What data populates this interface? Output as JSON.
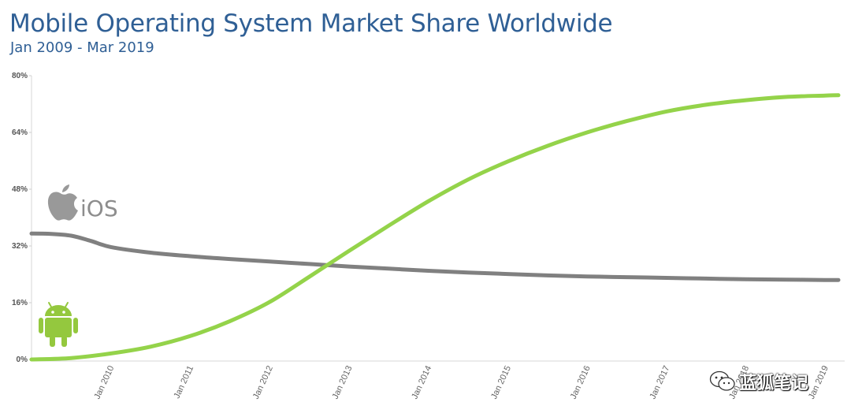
{
  "chart_data": {
    "type": "line",
    "title": "Mobile Operating System Market Share Worldwide",
    "subtitle": "Jan 2009 - Mar 2019",
    "xlabel": "",
    "ylabel": "",
    "ylim": [
      0,
      80
    ],
    "y_ticks": [
      "0%",
      "16%",
      "32%",
      "48%",
      "64%",
      "80%"
    ],
    "y_tick_values": [
      0,
      16,
      32,
      48,
      64,
      80
    ],
    "x_ticks": [
      "Jan 2010",
      "Jan 2011",
      "Jan 2012",
      "Jan 2013",
      "Jan 2014",
      "Jan 2015",
      "Jan 2016",
      "Jan 2017",
      "Jan 2018",
      "Jan 2019"
    ],
    "x_tick_values": [
      "2010-01",
      "2011-01",
      "2012-01",
      "2013-01",
      "2014-01",
      "2015-01",
      "2016-01",
      "2017-01",
      "2018-01",
      "2019-01"
    ],
    "x_range": [
      "2009-01",
      "2019-03"
    ],
    "grid": false,
    "series": [
      {
        "name": "iOS",
        "color": "#808080",
        "icon": "apple-logo-icon",
        "x": [
          "2009-01",
          "2009-04",
          "2009-07",
          "2009-10",
          "2010-01",
          "2010-07",
          "2011-01",
          "2011-07",
          "2012-01",
          "2012-07",
          "2013-01",
          "2013-07",
          "2014-01",
          "2014-07",
          "2015-01",
          "2015-07",
          "2016-01",
          "2016-07",
          "2017-01",
          "2017-07",
          "2018-01",
          "2018-07",
          "2019-01",
          "2019-03"
        ],
        "values": [
          35.5,
          35.4,
          34.9,
          33.4,
          31.7,
          30.1,
          29.1,
          28.3,
          27.6,
          26.9,
          26.2,
          25.6,
          25.0,
          24.5,
          24.1,
          23.7,
          23.4,
          23.2,
          23.0,
          22.8,
          22.6,
          22.5,
          22.4,
          22.4
        ]
      },
      {
        "name": "Android",
        "color": "#94d34a",
        "icon": "android-robot-icon",
        "x": [
          "2009-01",
          "2009-07",
          "2010-01",
          "2010-07",
          "2011-01",
          "2011-07",
          "2012-01",
          "2012-07",
          "2013-01",
          "2013-07",
          "2014-01",
          "2014-07",
          "2015-01",
          "2015-07",
          "2016-01",
          "2016-07",
          "2017-01",
          "2017-07",
          "2018-01",
          "2018-07",
          "2019-01",
          "2019-03"
        ],
        "values": [
          0.0,
          0.4,
          1.7,
          3.6,
          6.6,
          10.8,
          16.2,
          23.3,
          30.6,
          37.7,
          44.6,
          50.7,
          55.8,
          60.2,
          64.0,
          67.2,
          69.9,
          71.8,
          73.1,
          74.0,
          74.4,
          74.5
        ]
      }
    ]
  },
  "watermark": {
    "icon": "wechat-icon",
    "text": "蓝狐笔记"
  }
}
